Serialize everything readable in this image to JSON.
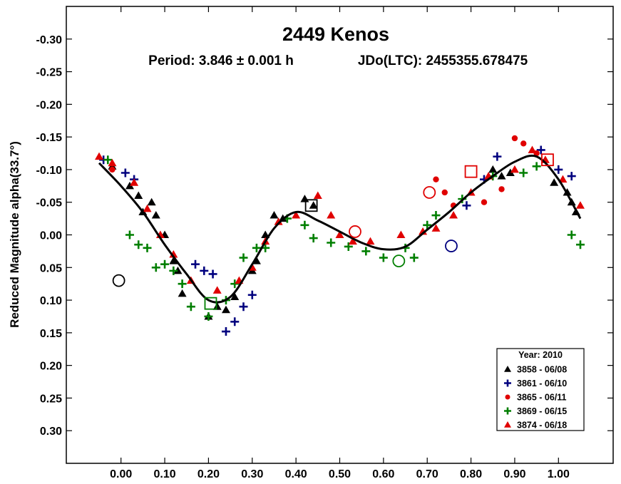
{
  "chart_data": {
    "type": "scatter",
    "title": "2449 Kenos",
    "subtitle_period": "Period: 3.846 ± 0.001 h",
    "subtitle_epoch": "JDo(LTC): 2455355.678475",
    "ylabel": "Reduced Magnitude alpha(33.7°)",
    "xlabel": "",
    "xlim": [
      -0.125,
      1.125
    ],
    "ylim": [
      0.35,
      -0.35
    ],
    "y_inverted": true,
    "grid": false,
    "legend_position": "bottom-right",
    "x_ticks": [
      0.0,
      0.1,
      0.2,
      0.3,
      0.4,
      0.5,
      0.6,
      0.7,
      0.8,
      0.9,
      1.0
    ],
    "x_tick_labels": [
      "0.00",
      "0.10",
      "0.20",
      "0.30",
      "0.40",
      "0.50",
      "0.60",
      "0.70",
      "0.80",
      "0.90",
      "1.00"
    ],
    "y_ticks": [
      -0.3,
      -0.25,
      -0.2,
      -0.15,
      -0.1,
      -0.05,
      0.0,
      0.05,
      0.1,
      0.15,
      0.2,
      0.25,
      0.3
    ],
    "y_tick_labels": [
      "-0.30",
      "-0.25",
      "-0.20",
      "-0.15",
      "-0.10",
      "-0.05",
      "0.00",
      "0.05",
      "0.10",
      "0.15",
      "0.20",
      "0.25",
      "0.30"
    ],
    "legend": {
      "title": "Year: 2010",
      "entries": [
        {
          "label": "3858 - 06/08",
          "marker": "triangle",
          "color": "#000000"
        },
        {
          "label": "3861 - 06/10",
          "marker": "plus",
          "color": "#00007f"
        },
        {
          "label": "3865 - 06/11",
          "marker": "circle",
          "color": "#e00000"
        },
        {
          "label": "3869 - 06/15",
          "marker": "plus",
          "color": "#007f00"
        },
        {
          "label": "3874 - 06/18",
          "marker": "triangle",
          "color": "#e00000"
        }
      ]
    },
    "fit_curve": [
      [
        -0.05,
        -0.11
      ],
      [
        0.0,
        -0.075
      ],
      [
        0.05,
        -0.035
      ],
      [
        0.1,
        0.015
      ],
      [
        0.15,
        0.06
      ],
      [
        0.2,
        0.1
      ],
      [
        0.25,
        0.095
      ],
      [
        0.3,
        0.045
      ],
      [
        0.35,
        -0.01
      ],
      [
        0.4,
        -0.035
      ],
      [
        0.45,
        -0.022
      ],
      [
        0.5,
        -0.005
      ],
      [
        0.55,
        0.012
      ],
      [
        0.6,
        0.022
      ],
      [
        0.65,
        0.018
      ],
      [
        0.7,
        -0.008
      ],
      [
        0.75,
        -0.035
      ],
      [
        0.8,
        -0.065
      ],
      [
        0.85,
        -0.09
      ],
      [
        0.9,
        -0.112
      ],
      [
        0.95,
        -0.12
      ],
      [
        1.0,
        -0.085
      ],
      [
        1.05,
        -0.025
      ]
    ],
    "series": [
      {
        "name": "3858 - 06/08",
        "marker": "triangle",
        "color": "#000000",
        "points": [
          [
            -0.02,
            -0.105
          ],
          [
            0.02,
            -0.075
          ],
          [
            0.04,
            -0.06
          ],
          [
            0.05,
            -0.035
          ],
          [
            0.07,
            -0.05
          ],
          [
            0.08,
            -0.03
          ],
          [
            0.1,
            0.0
          ],
          [
            0.12,
            0.04
          ],
          [
            0.13,
            0.055
          ],
          [
            0.14,
            0.09
          ],
          [
            0.2,
            0.125
          ],
          [
            0.22,
            0.11
          ],
          [
            0.24,
            0.115
          ],
          [
            0.26,
            0.095
          ],
          [
            0.3,
            0.055
          ],
          [
            0.31,
            0.04
          ],
          [
            0.33,
            0.0
          ],
          [
            0.35,
            -0.03
          ],
          [
            0.37,
            -0.025
          ],
          [
            0.42,
            -0.055
          ],
          [
            0.44,
            -0.045
          ],
          [
            0.85,
            -0.1
          ],
          [
            0.87,
            -0.09
          ],
          [
            0.89,
            -0.095
          ],
          [
            0.99,
            -0.08
          ],
          [
            1.02,
            -0.065
          ],
          [
            1.03,
            -0.05
          ],
          [
            1.04,
            -0.035
          ]
        ]
      },
      {
        "name": "3861 - 06/10",
        "marker": "plus",
        "color": "#00007f",
        "points": [
          [
            -0.04,
            -0.115
          ],
          [
            0.01,
            -0.095
          ],
          [
            0.03,
            -0.085
          ],
          [
            0.17,
            0.045
          ],
          [
            0.19,
            0.055
          ],
          [
            0.21,
            0.06
          ],
          [
            0.24,
            0.148
          ],
          [
            0.26,
            0.133
          ],
          [
            0.28,
            0.11
          ],
          [
            0.3,
            0.092
          ],
          [
            0.79,
            -0.045
          ],
          [
            0.83,
            -0.085
          ],
          [
            0.86,
            -0.12
          ],
          [
            0.96,
            -0.13
          ],
          [
            1.0,
            -0.1
          ],
          [
            1.03,
            -0.09
          ]
        ]
      },
      {
        "name": "3865 - 06/11",
        "marker": "circle",
        "color": "#e00000",
        "points": [
          [
            -0.02,
            -0.1
          ],
          [
            0.72,
            -0.085
          ],
          [
            0.74,
            -0.065
          ],
          [
            0.76,
            -0.045
          ],
          [
            0.83,
            -0.05
          ],
          [
            0.87,
            -0.07
          ],
          [
            0.9,
            -0.148
          ],
          [
            0.92,
            -0.14
          ],
          [
            0.95,
            -0.125
          ]
        ]
      },
      {
        "name": "3869 - 06/15",
        "marker": "plus",
        "color": "#007f00",
        "points": [
          [
            -0.03,
            -0.115
          ],
          [
            0.02,
            0.0
          ],
          [
            0.04,
            0.015
          ],
          [
            0.06,
            0.02
          ],
          [
            0.08,
            0.05
          ],
          [
            0.1,
            0.045
          ],
          [
            0.12,
            0.055
          ],
          [
            0.14,
            0.075
          ],
          [
            0.16,
            0.11
          ],
          [
            0.2,
            0.125
          ],
          [
            0.24,
            0.1
          ],
          [
            0.26,
            0.075
          ],
          [
            0.28,
            0.035
          ],
          [
            0.31,
            0.02
          ],
          [
            0.33,
            0.02
          ],
          [
            0.38,
            -0.025
          ],
          [
            0.42,
            -0.015
          ],
          [
            0.44,
            0.005
          ],
          [
            0.48,
            0.012
          ],
          [
            0.52,
            0.018
          ],
          [
            0.56,
            0.025
          ],
          [
            0.6,
            0.035
          ],
          [
            0.65,
            0.02
          ],
          [
            0.67,
            0.035
          ],
          [
            0.7,
            -0.015
          ],
          [
            0.72,
            -0.03
          ],
          [
            0.78,
            -0.055
          ],
          [
            0.85,
            -0.09
          ],
          [
            0.92,
            -0.095
          ],
          [
            0.95,
            -0.105
          ],
          [
            1.03,
            0.0
          ],
          [
            1.05,
            0.015
          ]
        ]
      },
      {
        "name": "3874 - 06/18",
        "marker": "triangle",
        "color": "#e00000",
        "points": [
          [
            -0.05,
            -0.12
          ],
          [
            -0.02,
            -0.11
          ],
          [
            0.03,
            -0.08
          ],
          [
            0.06,
            -0.04
          ],
          [
            0.09,
            0.0
          ],
          [
            0.12,
            0.03
          ],
          [
            0.16,
            0.07
          ],
          [
            0.22,
            0.085
          ],
          [
            0.27,
            0.07
          ],
          [
            0.3,
            0.05
          ],
          [
            0.33,
            0.01
          ],
          [
            0.36,
            -0.02
          ],
          [
            0.4,
            -0.03
          ],
          [
            0.45,
            -0.06
          ],
          [
            0.48,
            -0.03
          ],
          [
            0.5,
            0.0
          ],
          [
            0.53,
            0.01
          ],
          [
            0.57,
            0.01
          ],
          [
            0.64,
            0.0
          ],
          [
            0.69,
            -0.005
          ],
          [
            0.72,
            -0.01
          ],
          [
            0.76,
            -0.03
          ],
          [
            0.8,
            -0.065
          ],
          [
            0.84,
            -0.09
          ],
          [
            0.9,
            -0.1
          ],
          [
            0.94,
            -0.13
          ],
          [
            0.97,
            -0.115
          ],
          [
            1.01,
            -0.085
          ],
          [
            1.05,
            -0.045
          ]
        ]
      }
    ],
    "open_markers": [
      {
        "x": -0.005,
        "y": 0.07,
        "shape": "circle",
        "color": "#000000"
      },
      {
        "x": 0.435,
        "y": -0.045,
        "shape": "square",
        "color": "#000000"
      },
      {
        "x": 0.535,
        "y": -0.005,
        "shape": "circle",
        "color": "#e00000"
      },
      {
        "x": 0.705,
        "y": -0.065,
        "shape": "circle",
        "color": "#e00000"
      },
      {
        "x": 0.755,
        "y": 0.017,
        "shape": "circle",
        "color": "#00007f"
      },
      {
        "x": 0.8,
        "y": -0.097,
        "shape": "square",
        "color": "#e00000"
      },
      {
        "x": 0.975,
        "y": -0.115,
        "shape": "square",
        "color": "#e00000"
      },
      {
        "x": 0.635,
        "y": 0.04,
        "shape": "circle",
        "color": "#007f00"
      },
      {
        "x": 0.205,
        "y": 0.105,
        "shape": "square",
        "color": "#007f00"
      }
    ]
  }
}
